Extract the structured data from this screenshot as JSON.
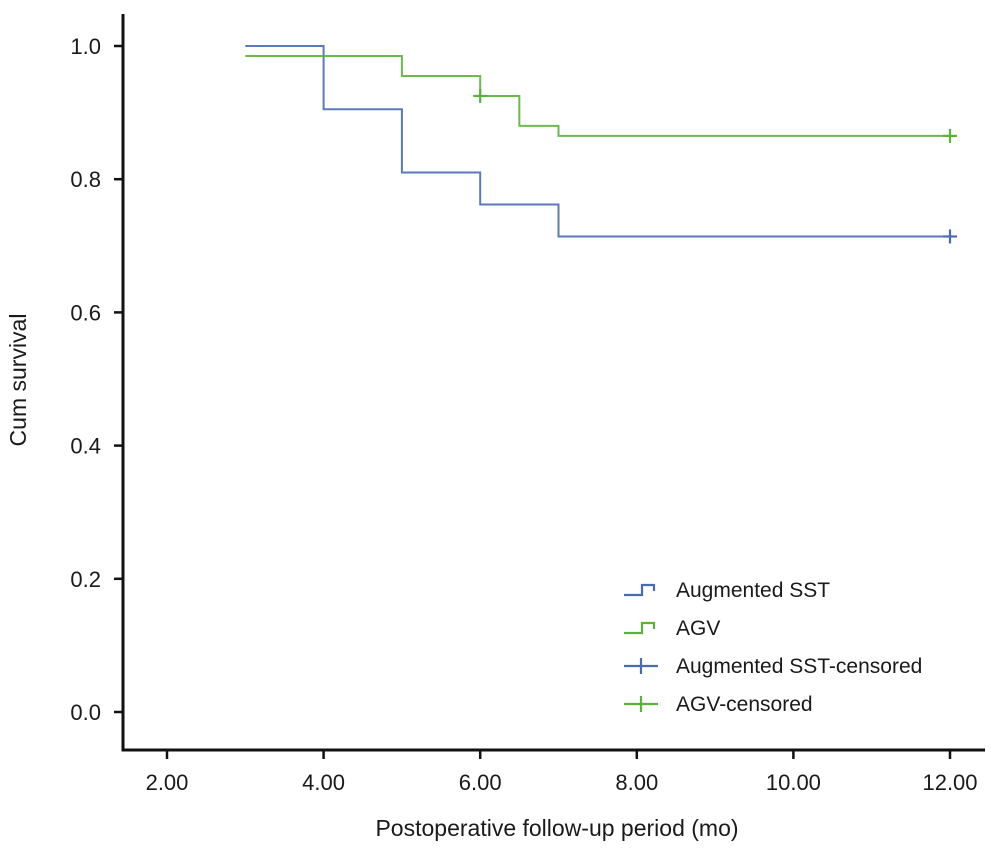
{
  "chart_data": {
    "type": "line",
    "subtype": "kaplan-meier step",
    "xlabel": "Postoperative follow-up period (mo)",
    "ylabel": "Cum survival",
    "xlim": [
      1.4,
      12.45
    ],
    "ylim": [
      -0.06,
      1.05
    ],
    "x_ticks": [
      2,
      4,
      6,
      8,
      10,
      12
    ],
    "x_tick_labels": [
      "2.00",
      "4.00",
      "6.00",
      "8.00",
      "10.00",
      "12.00"
    ],
    "y_ticks": [
      0.0,
      0.2,
      0.4,
      0.6,
      0.8,
      1.0
    ],
    "y_tick_labels": [
      "0.0",
      "0.2",
      "0.4",
      "0.6",
      "0.8",
      "1.0"
    ],
    "grid": false,
    "legend_position": "bottom-right",
    "series": [
      {
        "name": "Augmented SST",
        "color": "#4a6bb3",
        "steps": [
          {
            "x": 3,
            "y": 1.0
          },
          {
            "x": 4,
            "y": 0.905
          },
          {
            "x": 5,
            "y": 0.81
          },
          {
            "x": 6,
            "y": 0.762
          },
          {
            "x": 7,
            "y": 0.714
          },
          {
            "x": 12,
            "y": 0.714
          }
        ],
        "censored": [
          {
            "x": 12,
            "y": 0.714
          }
        ]
      },
      {
        "name": "AGV",
        "color": "#5cb13a",
        "steps": [
          {
            "x": 3,
            "y": 0.985
          },
          {
            "x": 5,
            "y": 0.955
          },
          {
            "x": 6,
            "y": 0.925
          },
          {
            "x": 6.5,
            "y": 0.88
          },
          {
            "x": 7,
            "y": 0.865
          },
          {
            "x": 12,
            "y": 0.865
          }
        ],
        "censored": [
          {
            "x": 6,
            "y": 0.925
          },
          {
            "x": 12,
            "y": 0.865
          }
        ]
      }
    ],
    "legend": [
      {
        "label": "Augmented SST",
        "symbol": "step",
        "color": "#4a6bb3"
      },
      {
        "label": "AGV",
        "symbol": "step",
        "color": "#5cb13a"
      },
      {
        "label": "Augmented SST-censored",
        "symbol": "censor",
        "color": "#4a6bb3"
      },
      {
        "label": "AGV-censored",
        "symbol": "censor",
        "color": "#5cb13a"
      }
    ]
  }
}
